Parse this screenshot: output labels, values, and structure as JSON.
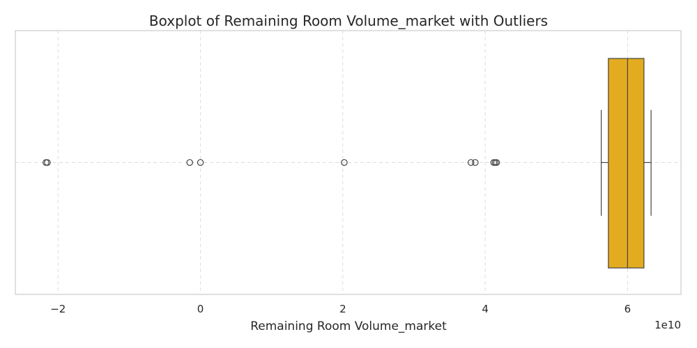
{
  "chart_data": {
    "type": "boxplot",
    "title": "Boxplot of Remaining Room Volume_market with Outliers",
    "xlabel": "Remaining Room Volume_market",
    "ylabel": "",
    "x_scale_label": "1e10",
    "xlim": [
      -2.6,
      6.75
    ],
    "x_ticks": [
      -2,
      0,
      2,
      4,
      6
    ],
    "x_tick_labels": [
      "−2",
      "0",
      "2",
      "4",
      "6"
    ],
    "grid": true,
    "orientation": "horizontal",
    "box_color": "#e3ab20",
    "box": {
      "whisker_low": 5.63,
      "q1": 5.73,
      "median": 6.0,
      "q3": 6.23,
      "whisker_high": 6.33
    },
    "outliers": [
      -2.17,
      -2.15,
      -0.15,
      0.0,
      2.02,
      3.8,
      3.86,
      4.12,
      4.14,
      4.16
    ]
  }
}
